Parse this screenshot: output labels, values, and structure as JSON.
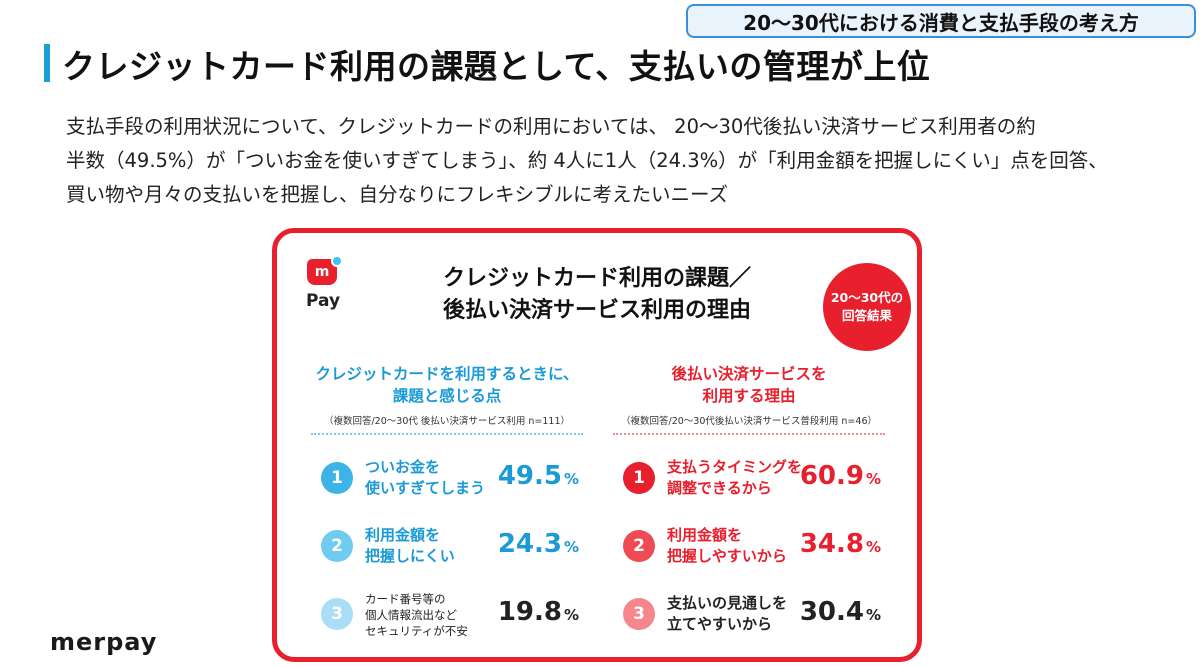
{
  "header": {
    "tag": "20〜30代における消費と支払手段の考え方",
    "title": "クレジットカード利用の課題として、支払いの管理が上位"
  },
  "intro": [
    "支払手段の利用状況について、クレジットカードの利用においては、 20〜30代後払い決済サービス利用者の約",
    "半数（49.5%）が「ついお金を使いすぎてしまう」、約 4人に1人（24.3%）が「利用金額を把握しにくい」点を回答、",
    "買い物や月々の支払いを把握し、自分なりにフレキシブルに考えたいニーズ"
  ],
  "card": {
    "logo_mark": "m",
    "logo_text": "Pay",
    "title_line1": "クレジットカード利用の課題／",
    "title_line2": "後払い決済サービス利用の理由",
    "badge_line1": "20〜30代の",
    "badge_line2": "回答結果",
    "colors": {
      "red": "#e8202e",
      "blue": "#1c9ad6"
    },
    "left": {
      "head_line1": "クレジットカードを利用するときに、",
      "head_line2": "課題と感じる点",
      "note": "（複数回答/20〜30代 後払い決済サービス利用 n=111）",
      "items": [
        {
          "rank": "1",
          "line1": "ついお金を",
          "line2": "使いすぎてしまう",
          "line3": "",
          "value": "49.5",
          "unit": "%",
          "badge_color": "#3cb4e8",
          "text_color": "#1c9ad6"
        },
        {
          "rank": "2",
          "line1": "利用金額を",
          "line2": "把握しにくい",
          "line3": "",
          "value": "24.3",
          "unit": "%",
          "badge_color": "#6fcbf0",
          "text_color": "#1c9ad6"
        },
        {
          "rank": "3",
          "line1": "カード番号等の",
          "line2": "個人情報流出など",
          "line3": "セキュリティが不安",
          "value": "19.8",
          "unit": "%",
          "badge_color": "#a9def6",
          "text_color": "#222222"
        }
      ]
    },
    "right": {
      "head_line1": "後払い決済サービスを",
      "head_line2": "利用する理由",
      "note": "（複数回答/20〜30代後払い決済サービス普段利用 n=46）",
      "items": [
        {
          "rank": "1",
          "line1": "支払うタイミングを",
          "line2": "調整できるから",
          "line3": "",
          "value": "60.9",
          "unit": "%",
          "badge_color": "#e8202e",
          "text_color": "#e8202e"
        },
        {
          "rank": "2",
          "line1": "利用金額を",
          "line2": "把握しやすいから",
          "line3": "",
          "value": "34.8",
          "unit": "%",
          "badge_color": "#ef4b55",
          "text_color": "#e8202e"
        },
        {
          "rank": "3",
          "line1": "支払いの見通しを",
          "line2": "立てやすいから",
          "line3": "",
          "value": "30.4",
          "unit": "%",
          "badge_color": "#f4868c",
          "text_color": "#222222"
        }
      ]
    }
  },
  "footer": {
    "brand": "merpay"
  }
}
